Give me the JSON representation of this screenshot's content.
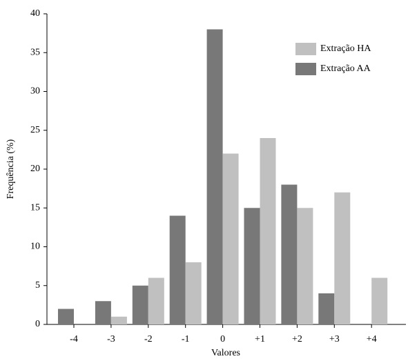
{
  "chart_data": {
    "type": "bar",
    "xlabel": "Valores",
    "ylabel": "Frequência (%)",
    "categories": [
      "-4",
      "-3",
      "-2",
      "-1",
      "0",
      "+1",
      "+2",
      "+3",
      "+4"
    ],
    "series": [
      {
        "name": "Extração AA",
        "color": "#787878",
        "values": [
          2,
          3,
          5,
          14,
          38,
          15,
          18,
          4,
          null
        ]
      },
      {
        "name": "Extração HA",
        "color": "#c0c0c0",
        "values": [
          null,
          1,
          6,
          8,
          22,
          24,
          15,
          17,
          6
        ]
      }
    ],
    "ylim": [
      0,
      40
    ],
    "yticks": [
      0,
      5,
      10,
      15,
      20,
      25,
      30,
      35,
      40
    ],
    "legend": "upper right"
  }
}
